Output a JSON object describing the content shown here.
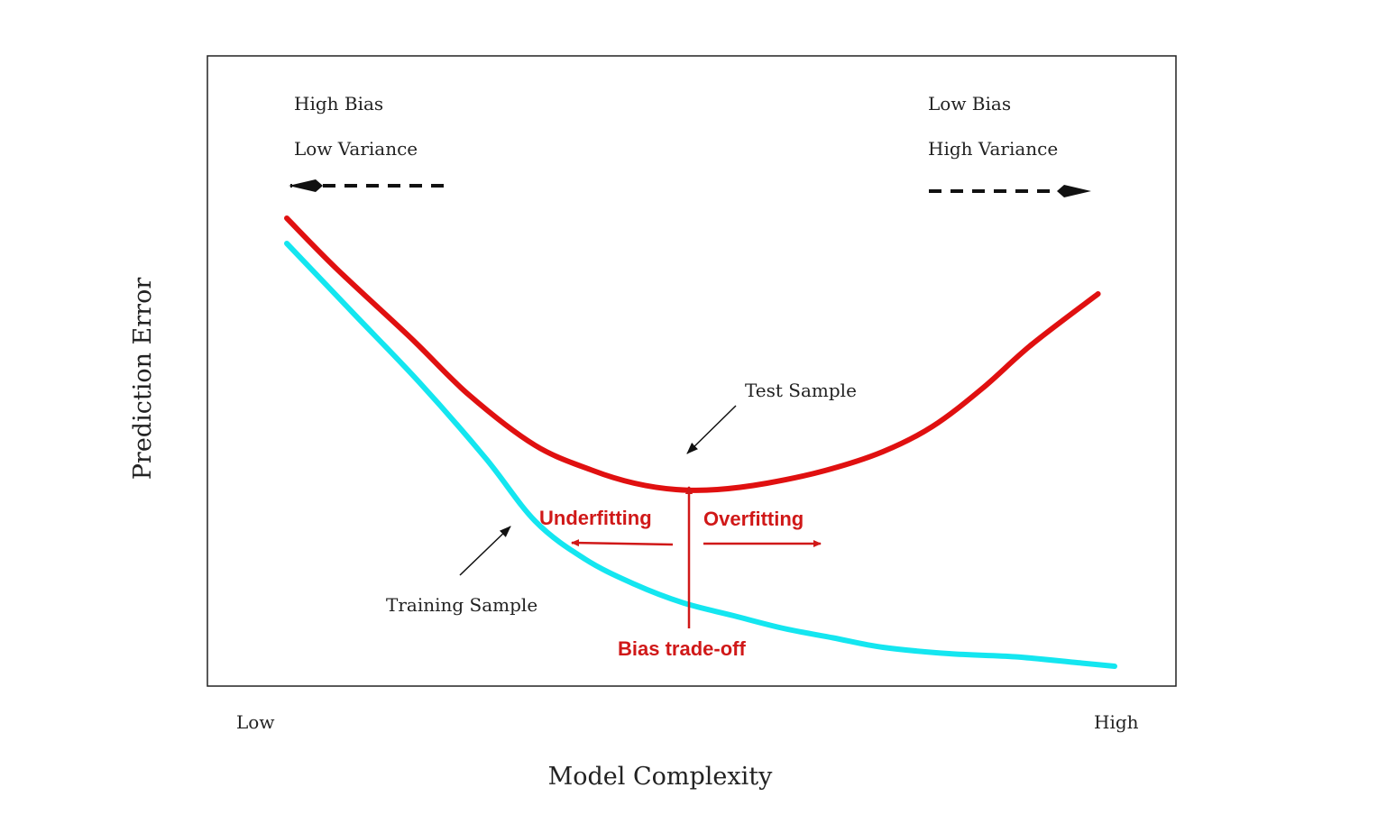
{
  "chart_data": {
    "type": "line",
    "title": "",
    "xlabel": "Model Complexity",
    "ylabel": "Prediction Error",
    "x_ticks": {
      "low": "Low",
      "high": "High"
    },
    "xlim": [
      0,
      1
    ],
    "ylim": [
      0,
      1
    ],
    "grid": false,
    "series": [
      {
        "name": "Test Sample",
        "color": "#e01010",
        "x": [
          0.0,
          0.06,
          0.15,
          0.22,
          0.3,
          0.37,
          0.42,
          0.47,
          0.52,
          0.58,
          0.65,
          0.72,
          0.78,
          0.84,
          0.9,
          0.98
        ],
        "y": [
          0.74,
          0.66,
          0.55,
          0.46,
          0.38,
          0.34,
          0.32,
          0.31,
          0.31,
          0.32,
          0.34,
          0.37,
          0.41,
          0.47,
          0.54,
          0.62
        ]
      },
      {
        "name": "Training Sample",
        "color": "#14e6f0",
        "x": [
          0.0,
          0.08,
          0.16,
          0.24,
          0.3,
          0.36,
          0.42,
          0.48,
          0.54,
          0.6,
          0.66,
          0.72,
          0.8,
          0.88,
          0.96,
          1.0
        ],
        "y": [
          0.7,
          0.59,
          0.48,
          0.36,
          0.26,
          0.2,
          0.16,
          0.13,
          0.11,
          0.09,
          0.075,
          0.06,
          0.05,
          0.045,
          0.035,
          0.03
        ]
      }
    ],
    "annotations": {
      "left_top": "High Bias",
      "left_bottom": "Low Variance",
      "right_top": "Low Bias",
      "right_bottom": "High Variance",
      "test_label": "Test Sample",
      "training_label": "Training Sample",
      "underfitting": "Underfitting",
      "overfitting": "Overfitting",
      "tradeoff": "Bias trade-off"
    },
    "annotation_color": "#d01818"
  }
}
